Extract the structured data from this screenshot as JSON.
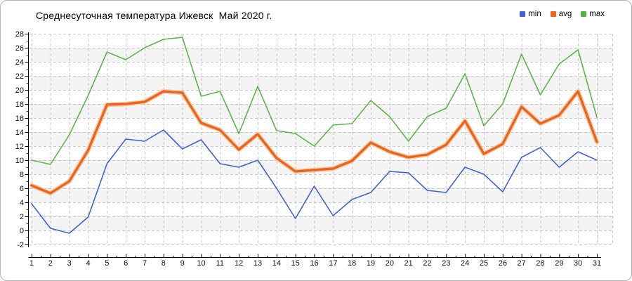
{
  "title": "Среднесуточная температура Ижевск  Май 2020 г.",
  "legend": [
    {
      "label": "min",
      "color": "#3e62d5"
    },
    {
      "label": "avg",
      "color": "#e8661f"
    },
    {
      "label": "max",
      "color": "#52b33e"
    }
  ],
  "colors": {
    "min_line": "#3e62d5",
    "avg_line": "#e8661f",
    "avg_halo": "#f8cba6",
    "max_line": "#5bb64a",
    "grid": "#c9c9c9",
    "band": "#f4f4f4",
    "axis": "#000000",
    "minor_tick": "#cf1f1f",
    "tick_label": "#111111"
  },
  "chart_data": {
    "type": "line",
    "title": "Среднесуточная температура Ижевск  Май 2020 г.",
    "xlabel": "",
    "ylabel": "",
    "x": [
      1,
      2,
      3,
      4,
      5,
      6,
      7,
      8,
      9,
      10,
      11,
      12,
      13,
      14,
      15,
      16,
      17,
      18,
      19,
      20,
      21,
      22,
      23,
      24,
      25,
      26,
      27,
      28,
      29,
      30,
      31
    ],
    "series": [
      {
        "name": "min",
        "color": "#3e62d5",
        "values": [
          3.8,
          0.3,
          -0.4,
          1.9,
          9.5,
          13.0,
          12.7,
          14.3,
          11.6,
          12.9,
          9.5,
          9.0,
          10.0,
          6.0,
          1.7,
          6.3,
          2.1,
          4.4,
          5.4,
          8.4,
          8.2,
          5.7,
          5.4,
          9.0,
          8.0,
          5.5,
          10.4,
          11.8,
          9.0,
          11.2,
          10.0
        ]
      },
      {
        "name": "avg",
        "color": "#e8661f",
        "values": [
          6.4,
          5.3,
          7.0,
          11.4,
          17.9,
          18.0,
          18.3,
          19.8,
          19.6,
          15.3,
          14.3,
          11.5,
          13.7,
          10.3,
          8.4,
          8.6,
          8.8,
          9.9,
          12.5,
          11.2,
          10.4,
          10.8,
          12.2,
          15.6,
          10.9,
          12.3,
          17.6,
          15.2,
          16.4,
          19.8,
          12.6
        ]
      },
      {
        "name": "max",
        "color": "#5bb64a",
        "values": [
          10.0,
          9.4,
          13.6,
          19.2,
          25.4,
          24.3,
          26.0,
          27.2,
          27.5,
          19.1,
          19.8,
          13.8,
          20.5,
          14.2,
          13.8,
          12.0,
          15.0,
          15.2,
          18.5,
          16.2,
          12.7,
          16.2,
          17.4,
          22.3,
          14.9,
          18.0,
          25.1,
          19.3,
          23.7,
          25.7,
          16.1
        ]
      }
    ],
    "ylim": [
      -2,
      28
    ],
    "y_ticks": [
      -2,
      0,
      2,
      4,
      6,
      8,
      10,
      12,
      14,
      16,
      18,
      20,
      22,
      24,
      26,
      28
    ],
    "x_ticks": [
      1,
      2,
      3,
      4,
      5,
      6,
      7,
      8,
      9,
      10,
      11,
      12,
      13,
      14,
      15,
      16,
      17,
      18,
      19,
      20,
      21,
      22,
      23,
      24,
      25,
      26,
      27,
      28,
      29,
      30,
      31
    ],
    "grid": true,
    "legend_position": "top-right"
  }
}
